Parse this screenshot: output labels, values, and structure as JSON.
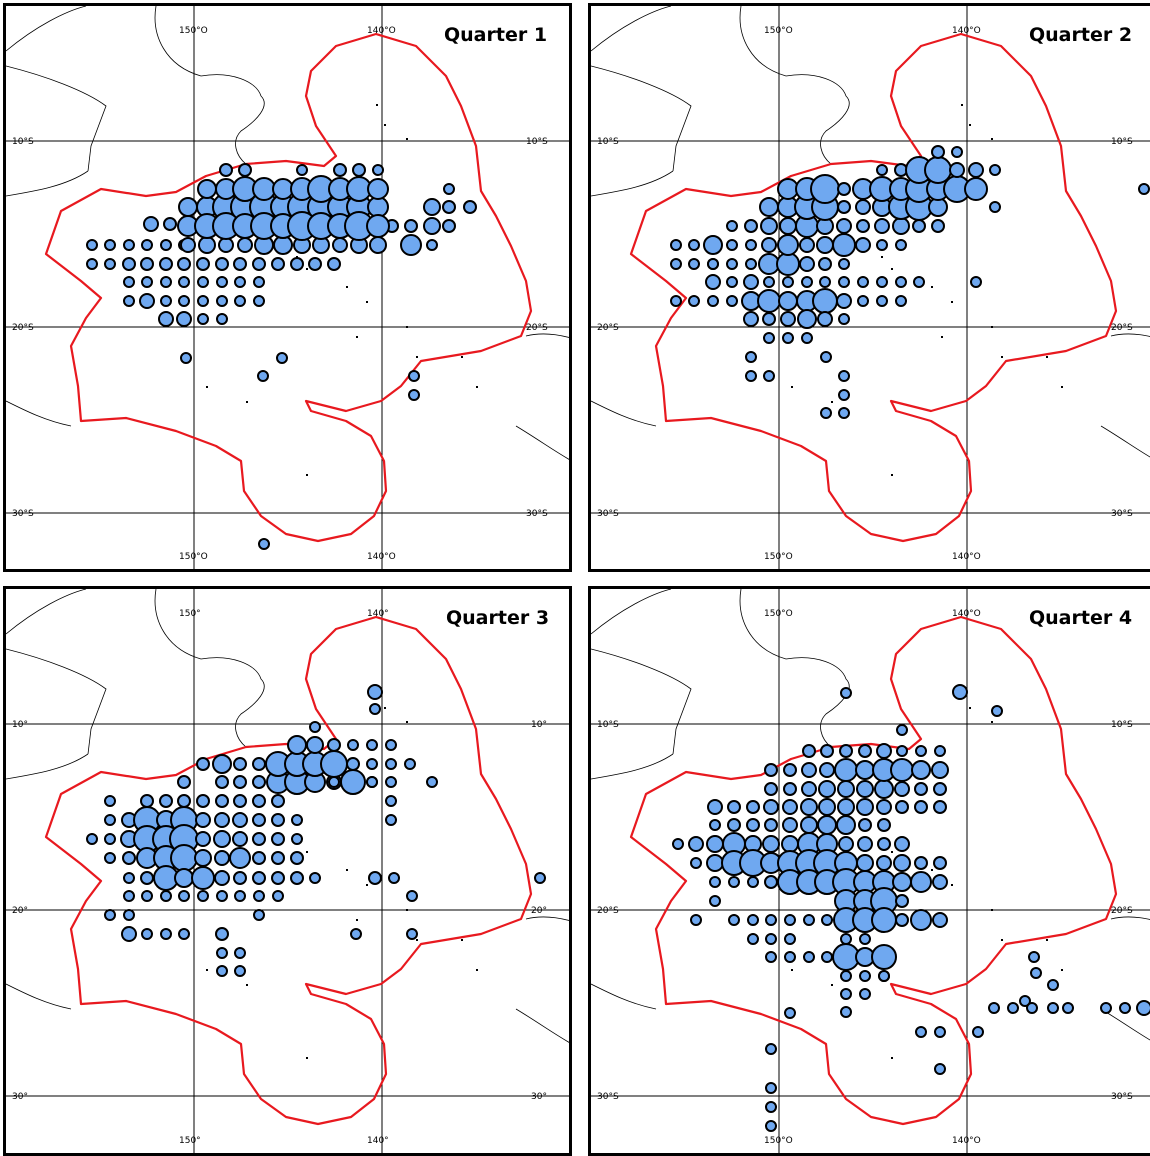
{
  "panels": [
    {
      "title": "Quarter 1",
      "lon_labels": [
        "150°O",
        "140°O"
      ],
      "lat_labels": [
        "10°S",
        "20°S",
        "30°S"
      ]
    },
    {
      "title": "Quarter 2",
      "lon_labels": [
        "150°O",
        "140°O"
      ],
      "lat_labels": [
        "10°S",
        "20°S",
        "30°S"
      ]
    },
    {
      "title": "Quarter 3",
      "lon_labels": [
        "150°",
        "140°"
      ],
      "lat_labels": [
        "10°",
        "20°",
        "30°"
      ]
    },
    {
      "title": "Quarter 4",
      "lon_labels": [
        "150°O",
        "140°O"
      ],
      "lat_labels": [
        "10°S",
        "20°S",
        "30°S"
      ]
    }
  ],
  "colors": {
    "eez_boundary": "#e8191f",
    "bubble_fill": "#6fa8f0",
    "bubble_stroke": "#000000",
    "grid": "#000000",
    "land_outline": "#000000"
  }
}
